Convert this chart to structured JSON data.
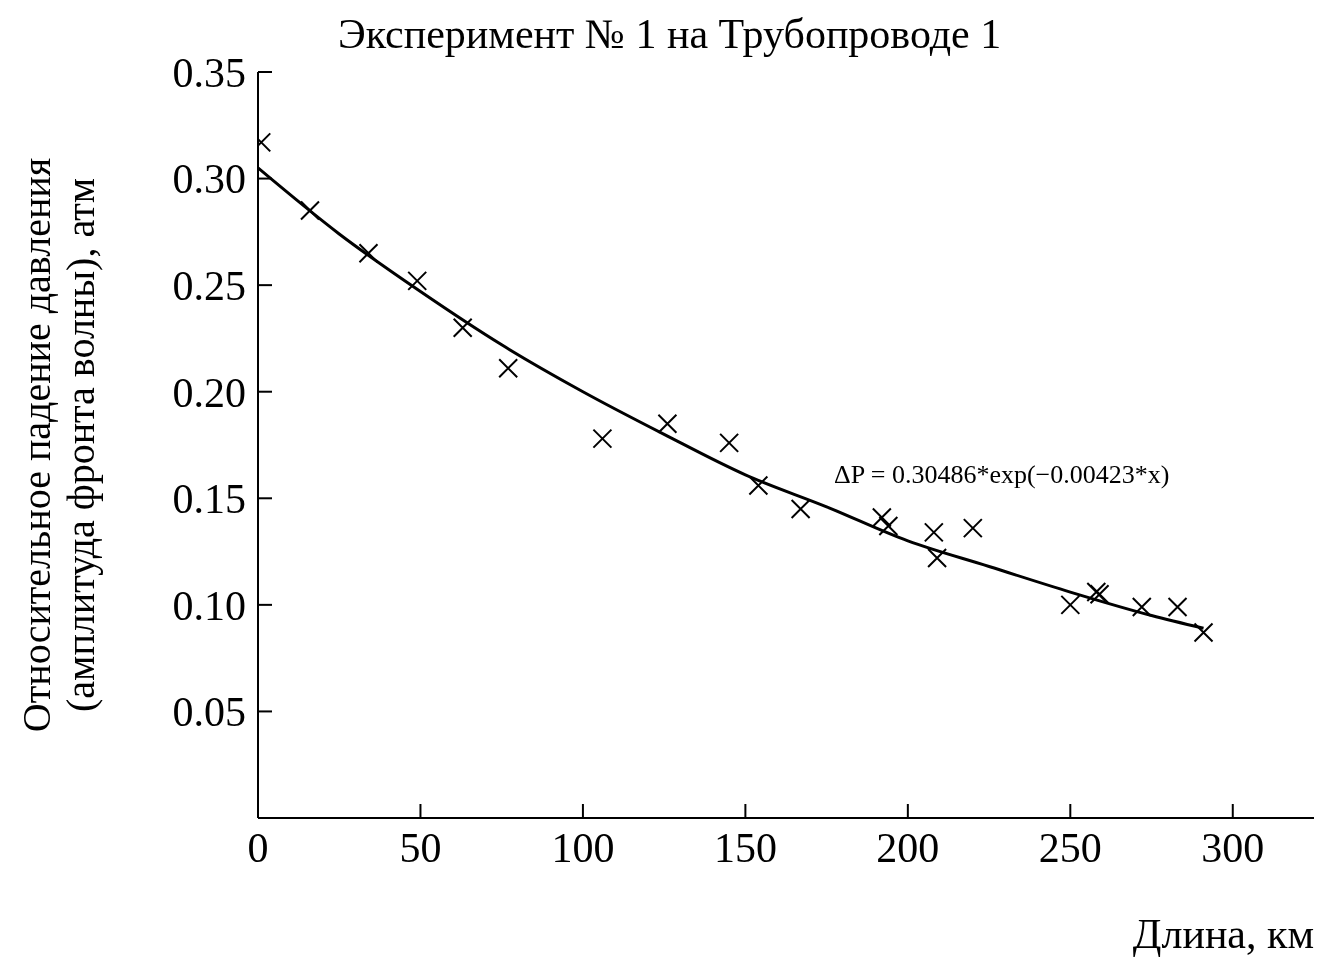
{
  "chart_data": {
    "type": "scatter",
    "title": "Эксперимент № 1 на Трубопроводе 1",
    "xlabel": "Длина, км",
    "ylabel": "Относительное падение давления\n(амплитуда фронта волны), атм",
    "annotations": [
      "ΔP = 0.30486*exp(−0.00423*x)"
    ],
    "xlim": [
      0,
      325
    ],
    "xticks": [
      0,
      50,
      100,
      150,
      200,
      250,
      300
    ],
    "ylim": [
      0,
      0.35
    ],
    "yticks": [
      0.05,
      {
        "value": 0.1,
        "label": "0.10"
      },
      0.15,
      {
        "value": 0.2,
        "label": "0.20"
      },
      0.25,
      {
        "value": 0.3,
        "label": "0.30"
      },
      0.35
    ],
    "grid": false,
    "legend": false,
    "series": [
      {
        "color": "#000000",
        "marker": "cross",
        "x": [
          1,
          16,
          34,
          49,
          63,
          77,
          106,
          126,
          145,
          154,
          167,
          192,
          194,
          208,
          209,
          220,
          250,
          258,
          259,
          272,
          283,
          291
        ],
        "values": [
          0.317,
          0.285,
          0.265,
          0.252,
          0.23,
          0.211,
          0.178,
          0.185,
          0.176,
          0.156,
          0.145,
          0.141,
          0.137,
          0.134,
          0.122,
          0.136,
          0.1,
          0.106,
          0.105,
          0.099,
          0.099,
          0.087
        ]
      },
      {
        "type": "line",
        "color": "#000000",
        "marker": "none",
        "line_style": "solid",
        "x": [
          0,
          25,
          50,
          75,
          100,
          125,
          150,
          175,
          200,
          225,
          250,
          275,
          291
        ],
        "values": [
          0.305,
          0.274,
          0.247,
          0.222,
          0.2,
          0.18,
          0.161,
          0.146,
          0.13,
          0.118,
          0.106,
          0.095,
          0.089
        ]
      }
    ]
  }
}
